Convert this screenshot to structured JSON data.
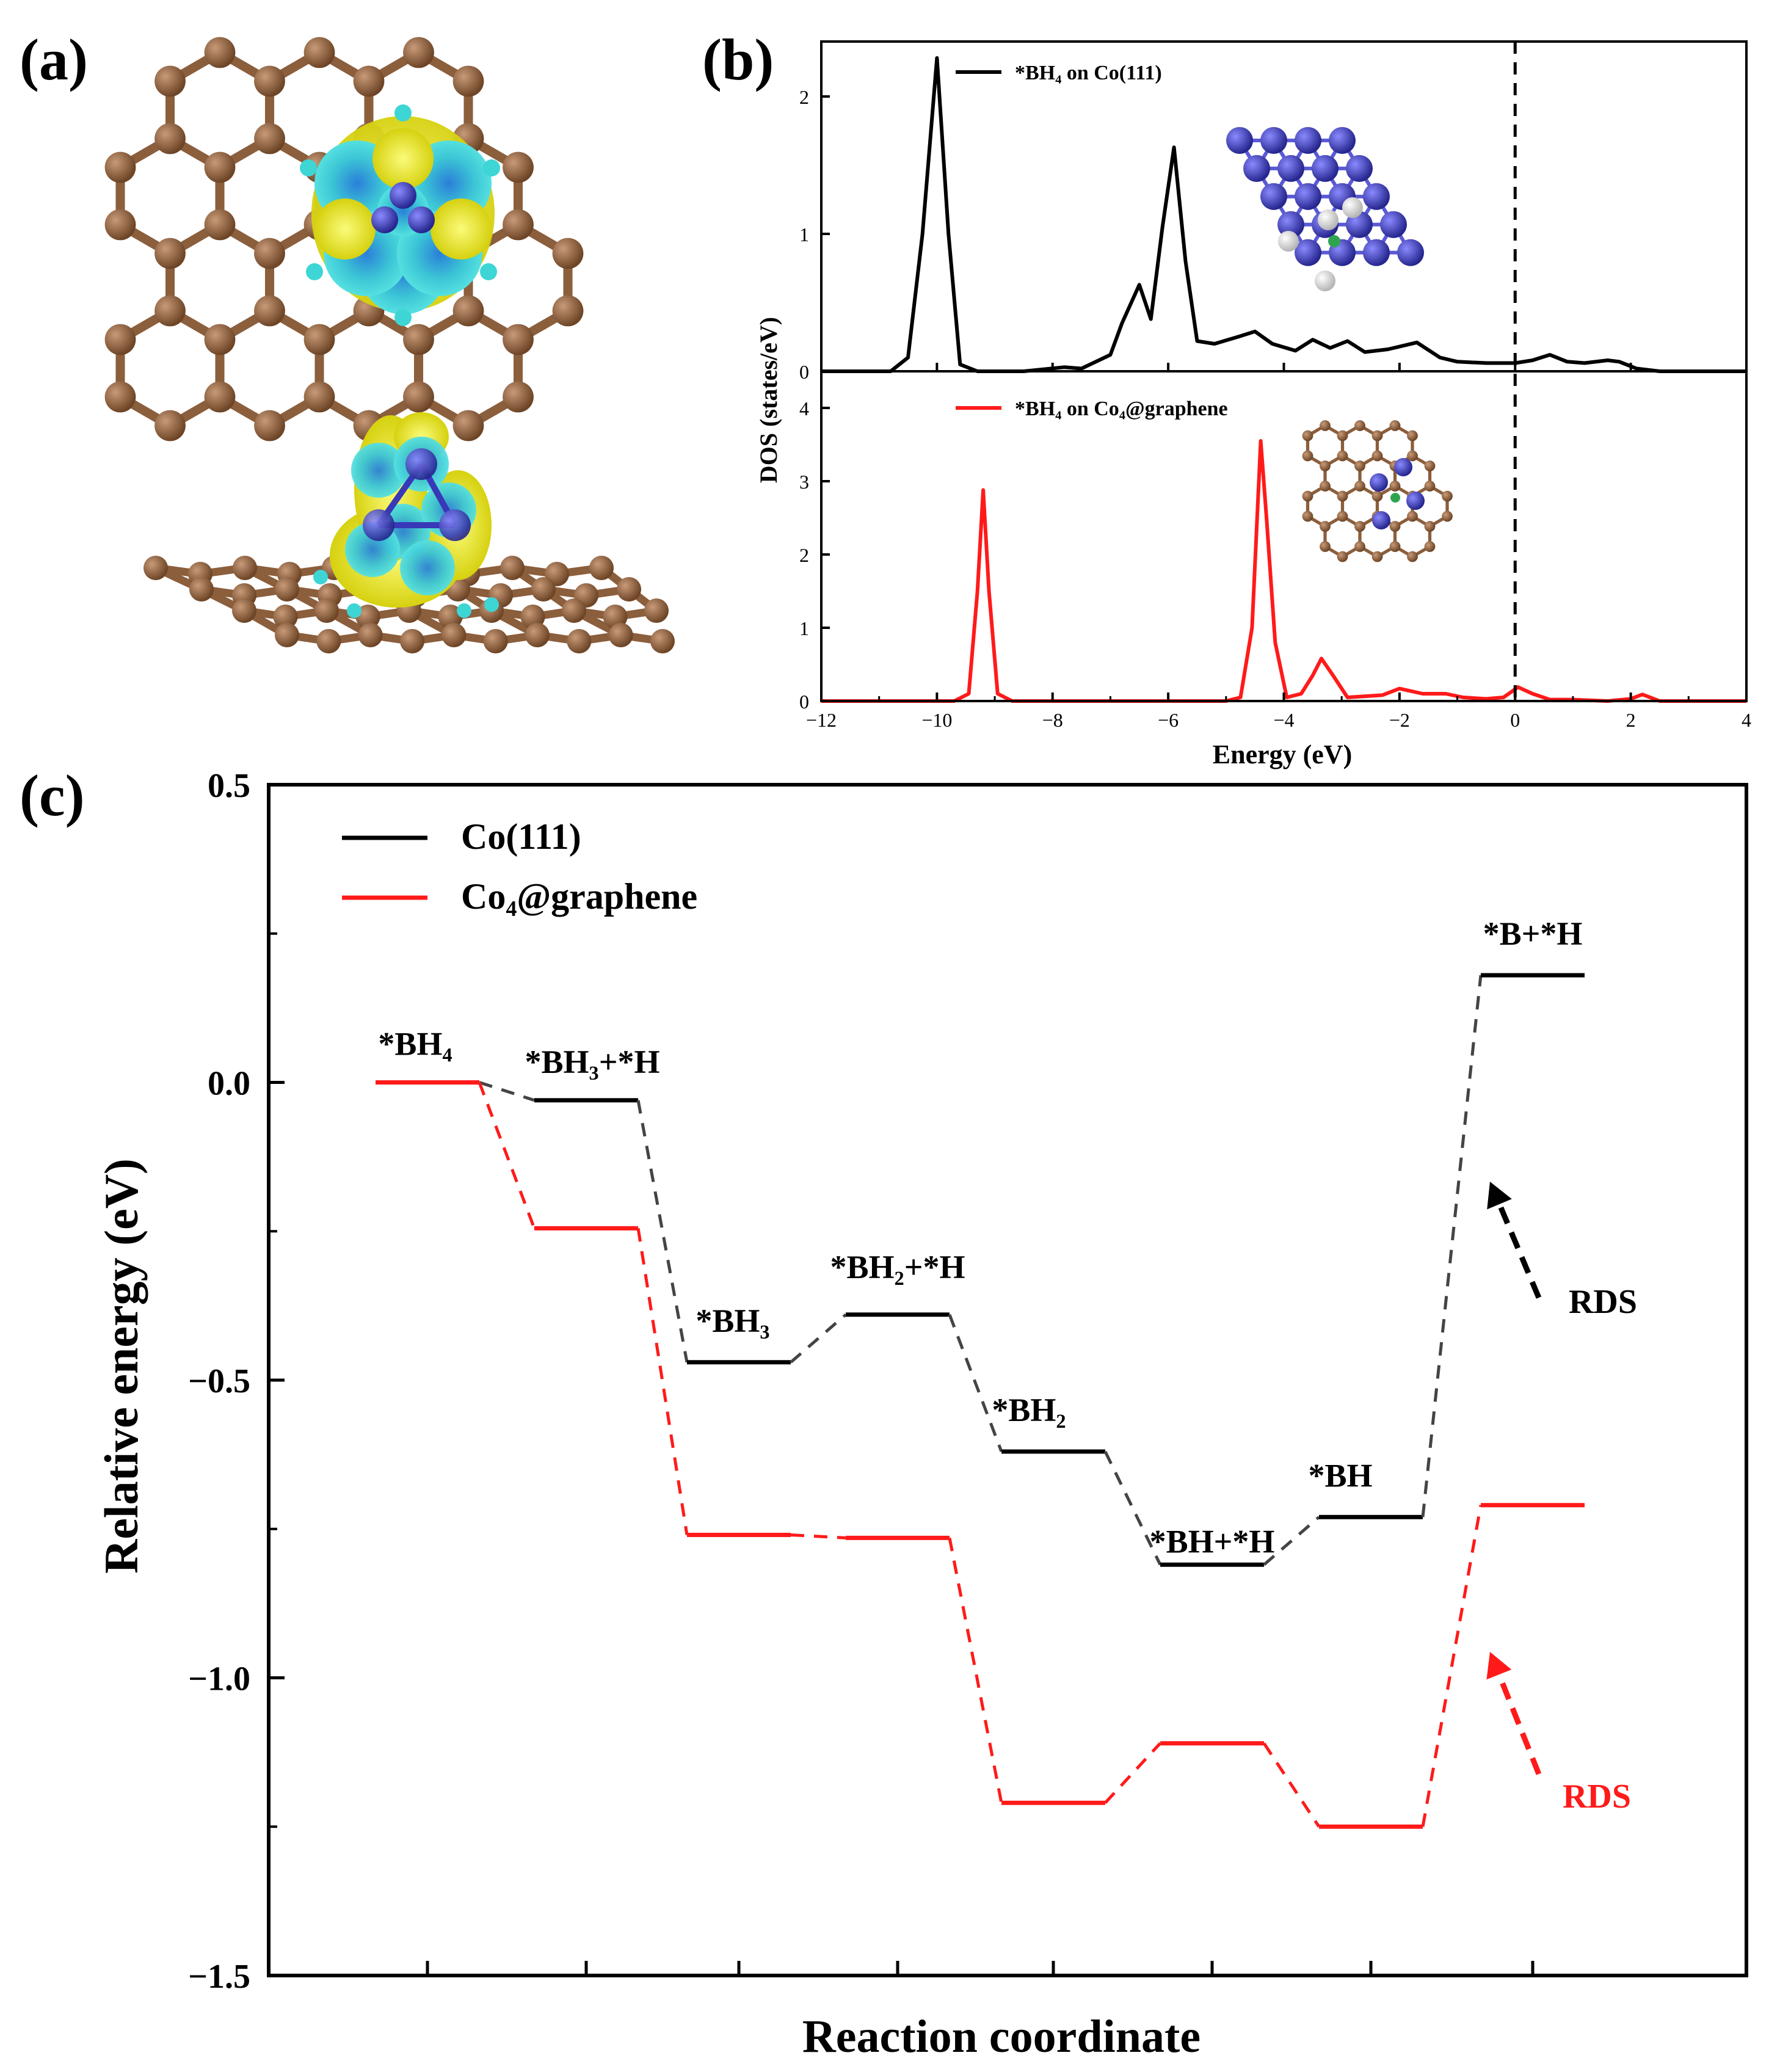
{
  "panels": {
    "a": "(a)",
    "b": "(b)",
    "c": "(c)"
  },
  "colors": {
    "black": "#000000",
    "red": "#ff1a1a",
    "grey_dash": "#444444",
    "carbon": "#8b5e3c",
    "cobalt": "#3838b8",
    "iso_yellow": "#e7e62a",
    "iso_cyan": "#3ed5d5"
  },
  "chart_data": [
    {
      "id": "b-top",
      "type": "line",
      "title": "",
      "legend": "*BH₄ on Co(111)",
      "ylabel": "DOS (states/eV)",
      "xlim": [
        -12,
        4
      ],
      "ylim": [
        0,
        2.4
      ],
      "yticks": [
        "0",
        "1",
        "2"
      ],
      "fermi_level": 0,
      "series": [
        {
          "name": "*BH₄ on Co(111)",
          "color": "#000000",
          "x": [
            -12,
            -10.8,
            -10.5,
            -10.25,
            -10.0,
            -9.8,
            -9.6,
            -9.3,
            -8.5,
            -7.8,
            -7.5,
            -7.0,
            -6.8,
            -6.5,
            -6.3,
            -6.1,
            -5.9,
            -5.7,
            -5.5,
            -5.2,
            -4.8,
            -4.5,
            -4.2,
            -3.8,
            -3.5,
            -3.2,
            -2.9,
            -2.6,
            -2.2,
            -1.7,
            -1.3,
            -1.0,
            -0.5,
            0,
            0.3,
            0.6,
            0.9,
            1.2,
            1.6,
            1.8,
            2.1,
            2.5,
            3.0,
            4.0
          ],
          "y": [
            0.0,
            0.0,
            0.1,
            1.0,
            2.28,
            1.0,
            0.05,
            0.0,
            0.0,
            0.03,
            0.02,
            0.12,
            0.35,
            0.63,
            0.38,
            1.05,
            1.63,
            0.8,
            0.22,
            0.2,
            0.25,
            0.29,
            0.2,
            0.15,
            0.23,
            0.17,
            0.22,
            0.14,
            0.16,
            0.21,
            0.1,
            0.07,
            0.06,
            0.06,
            0.08,
            0.12,
            0.07,
            0.06,
            0.08,
            0.07,
            0.02,
            0.0,
            0.0,
            0.0
          ]
        }
      ]
    },
    {
      "id": "b-bottom",
      "type": "line",
      "title": "",
      "legend": "*BH₄ on Co₄@graphene",
      "xlabel": "Energy (eV)",
      "xlim": [
        -12,
        4
      ],
      "ylim": [
        0,
        4.5
      ],
      "xticks": [
        "−12",
        "−10",
        "−8",
        "−6",
        "−4",
        "−2",
        "0",
        "2",
        "4"
      ],
      "yticks": [
        "0",
        "1",
        "2",
        "3",
        "4"
      ],
      "fermi_level": 0,
      "series": [
        {
          "name": "*BH₄ on Co₄@graphene",
          "color": "#ff1a1a",
          "x": [
            -12,
            -9.7,
            -9.45,
            -9.3,
            -9.2,
            -9.1,
            -8.95,
            -8.7,
            -5.0,
            -4.75,
            -4.55,
            -4.4,
            -4.3,
            -4.15,
            -3.95,
            -3.7,
            -3.5,
            -3.35,
            -3.15,
            -2.9,
            -2.3,
            -2.0,
            -1.6,
            -1.2,
            -0.9,
            -0.5,
            -0.2,
            0.05,
            0.3,
            0.6,
            1.0,
            1.6,
            2.0,
            2.2,
            2.5,
            4.0
          ],
          "y": [
            0.0,
            0.0,
            0.1,
            1.5,
            2.88,
            1.5,
            0.1,
            0.0,
            0.0,
            0.05,
            1.0,
            3.55,
            2.5,
            0.8,
            0.05,
            0.1,
            0.35,
            0.58,
            0.35,
            0.05,
            0.08,
            0.17,
            0.1,
            0.1,
            0.05,
            0.03,
            0.05,
            0.19,
            0.1,
            0.02,
            0.02,
            0.0,
            0.03,
            0.09,
            0.0,
            0.0
          ]
        }
      ]
    },
    {
      "id": "c",
      "type": "line",
      "title": "",
      "xlabel": "Reaction coordinate",
      "ylabel": "Relative energy (eV)",
      "ylim": [
        -1.5,
        0.5
      ],
      "yticks": [
        "−1.5",
        "−1.0",
        "−0.5",
        "0.0",
        "0.5"
      ],
      "categories": [
        "*BH₄",
        "*BH₃+*H",
        "*BH₃",
        "*BH₂+*H",
        "*BH₂",
        "*BH+*H",
        "*BH",
        "*B+*H"
      ],
      "series": [
        {
          "name": "Co(111)",
          "color": "#000000",
          "values": [
            0.0,
            -0.03,
            -0.47,
            -0.39,
            -0.62,
            -0.81,
            -0.73,
            0.18
          ]
        },
        {
          "name": "Co₄@graphene",
          "color": "#ff1a1a",
          "values": [
            0.0,
            -0.245,
            -0.76,
            -0.765,
            -1.21,
            -1.11,
            -1.25,
            -0.71
          ]
        }
      ],
      "annotations": [
        {
          "text": "RDS",
          "color": "#000000"
        },
        {
          "text": "RDS",
          "color": "#ff1a1a"
        }
      ]
    }
  ]
}
